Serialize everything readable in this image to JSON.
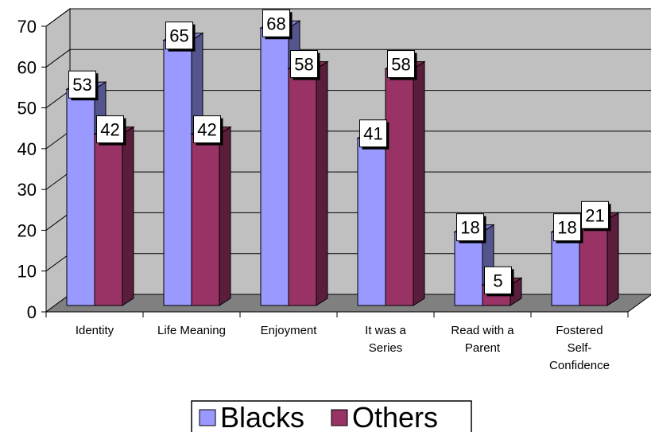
{
  "chart_data": {
    "type": "bar",
    "categories": [
      [
        "Identity"
      ],
      [
        "Life Meaning"
      ],
      [
        "Enjoyment"
      ],
      [
        "It was a",
        "Series"
      ],
      [
        "Read with a",
        "Parent"
      ],
      [
        "Fostered",
        "Self-",
        "Confidence"
      ]
    ],
    "series": [
      {
        "name": "Blacks",
        "values": [
          53,
          65,
          68,
          41,
          18,
          18
        ]
      },
      {
        "name": "Others",
        "values": [
          42,
          42,
          58,
          58,
          5,
          21
        ]
      }
    ],
    "ylim": [
      0,
      70
    ],
    "yticks": [
      "0",
      "10",
      "20",
      "30",
      "40",
      "50",
      "60",
      "70"
    ],
    "grid": true,
    "legend_position": "bottom",
    "style": "3d-clustered-column",
    "colors": {
      "blacks_front": "#9999ff",
      "blacks_side": "#55558e",
      "blacks_top": "#8080d0",
      "others_front": "#993366",
      "others_side": "#5a1e3c",
      "others_top": "#7d2a53",
      "wall": "#c0c0c0",
      "floor": "#808080",
      "gridline": "#000000"
    }
  }
}
